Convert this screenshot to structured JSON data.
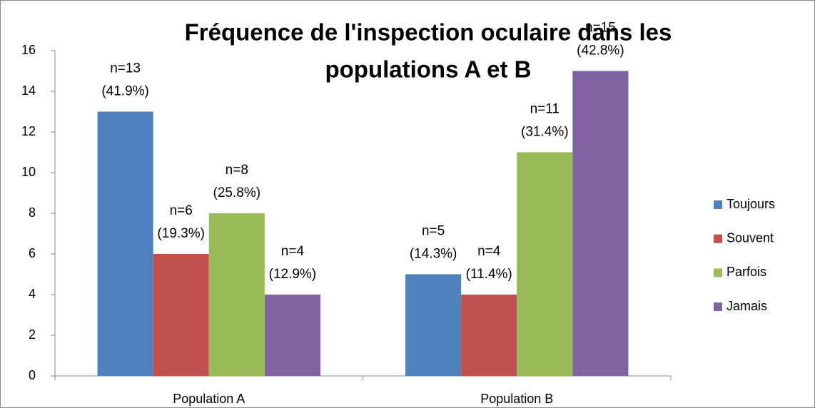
{
  "chart_data": {
    "type": "bar",
    "title": [
      "Fréquence de l'inspection oculaire dans les",
      "populations A et B"
    ],
    "categories": [
      "Population A",
      "Population B"
    ],
    "series": [
      {
        "name": "Toujours",
        "color": "#4f81bd",
        "values": [
          13,
          5
        ],
        "value_labels": [
          [
            "n=13",
            "(41.9%)"
          ],
          [
            "n=5",
            "(14.3%)"
          ]
        ]
      },
      {
        "name": "Souvent",
        "color": "#c0504d",
        "values": [
          6,
          4
        ],
        "value_labels": [
          [
            "n=6",
            "(19.3%)"
          ],
          [
            "n=4",
            "(11.4%)"
          ]
        ]
      },
      {
        "name": "Parfois",
        "color": "#9bbb59",
        "values": [
          8,
          11
        ],
        "value_labels": [
          [
            "n=8",
            "(25.8%)"
          ],
          [
            "n=11",
            "(31.4%)"
          ]
        ]
      },
      {
        "name": "Jamais",
        "color": "#8064a2",
        "values": [
          4,
          15
        ],
        "value_labels": [
          [
            "n=4",
            "(12.9%)"
          ],
          [
            "n=15",
            "(42.8%)"
          ]
        ]
      }
    ],
    "ylim": [
      0,
      16
    ],
    "yticks": [
      0,
      2,
      4,
      6,
      8,
      10,
      12,
      14,
      16
    ],
    "legend": "right",
    "grid": false
  }
}
